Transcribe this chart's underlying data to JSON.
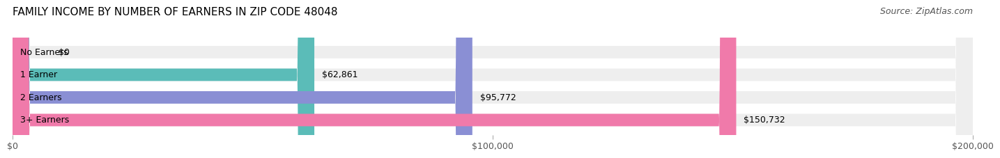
{
  "title": "FAMILY INCOME BY NUMBER OF EARNERS IN ZIP CODE 48048",
  "source": "Source: ZipAtlas.com",
  "categories": [
    "No Earners",
    "1 Earner",
    "2 Earners",
    "3+ Earners"
  ],
  "values": [
    0,
    62861,
    95772,
    150732
  ],
  "bar_colors": [
    "#c9a0c8",
    "#5bbcb8",
    "#8a8fd4",
    "#f07aaa"
  ],
  "bar_bg_color": "#eeeeee",
  "value_labels": [
    "$0",
    "$62,861",
    "$95,772",
    "$150,732"
  ],
  "xlim": [
    0,
    200000
  ],
  "xtick_values": [
    0,
    100000,
    200000
  ],
  "xtick_labels": [
    "$0",
    "$100,000",
    "$200,000"
  ],
  "title_fontsize": 11,
  "source_fontsize": 9,
  "label_fontsize": 9,
  "value_fontsize": 9,
  "tick_fontsize": 9,
  "background_color": "#ffffff",
  "bar_height": 0.55,
  "bar_bg_rounding": 0.3
}
